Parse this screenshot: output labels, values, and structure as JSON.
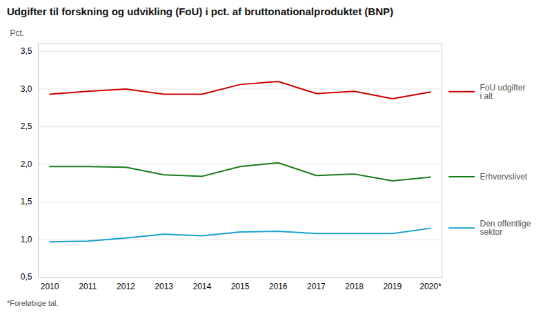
{
  "chart_data": {
    "type": "line",
    "title": "Udgifter til forskning og udvikling (FoU) i pct. af bruttonationalproduktet (BNP)",
    "y_label": "Pct.",
    "footnote": "*Foreløbige tal.",
    "x": [
      2010,
      2011,
      2012,
      2013,
      2014,
      2015,
      2016,
      2017,
      2018,
      2019,
      2020
    ],
    "series": [
      {
        "name": "FoU udgifter\ni alt",
        "color": "#cc0000",
        "values": [
          2.93,
          2.97,
          3.0,
          2.93,
          2.93,
          3.06,
          3.1,
          2.94,
          2.97,
          2.87,
          2.96
        ]
      },
      {
        "name": "Erhvervslivet",
        "color": "#1a7a1a",
        "values": [
          1.97,
          1.97,
          1.96,
          1.86,
          1.84,
          1.97,
          2.02,
          1.85,
          1.87,
          1.78,
          1.83
        ]
      },
      {
        "name": "Den offentlige\nsektor",
        "color": "#1aa0d0",
        "values": [
          0.97,
          0.98,
          1.02,
          1.07,
          1.05,
          1.1,
          1.11,
          1.08,
          1.08,
          1.08,
          1.15
        ]
      }
    ],
    "xlim": [
      2009.7,
      2020.3
    ],
    "xticks": [
      2010,
      2011,
      2012,
      2013,
      2014,
      2015,
      2016,
      2017,
      2018,
      2019,
      {
        "value": 2020,
        "label": "2020*"
      }
    ],
    "ylim": [
      0.5,
      3.6
    ],
    "yticks": [
      {
        "value": 0.5,
        "label": "0,5"
      },
      {
        "value": 1.0,
        "label": "1,0"
      },
      {
        "value": 1.5,
        "label": "1,5"
      },
      {
        "value": 2.0,
        "label": "2,0"
      },
      {
        "value": 2.5,
        "label": "2,5"
      },
      {
        "value": 3.0,
        "label": "3,0"
      },
      {
        "value": 3.5,
        "label": "3,5"
      }
    ],
    "grid": true,
    "legend": "right"
  }
}
